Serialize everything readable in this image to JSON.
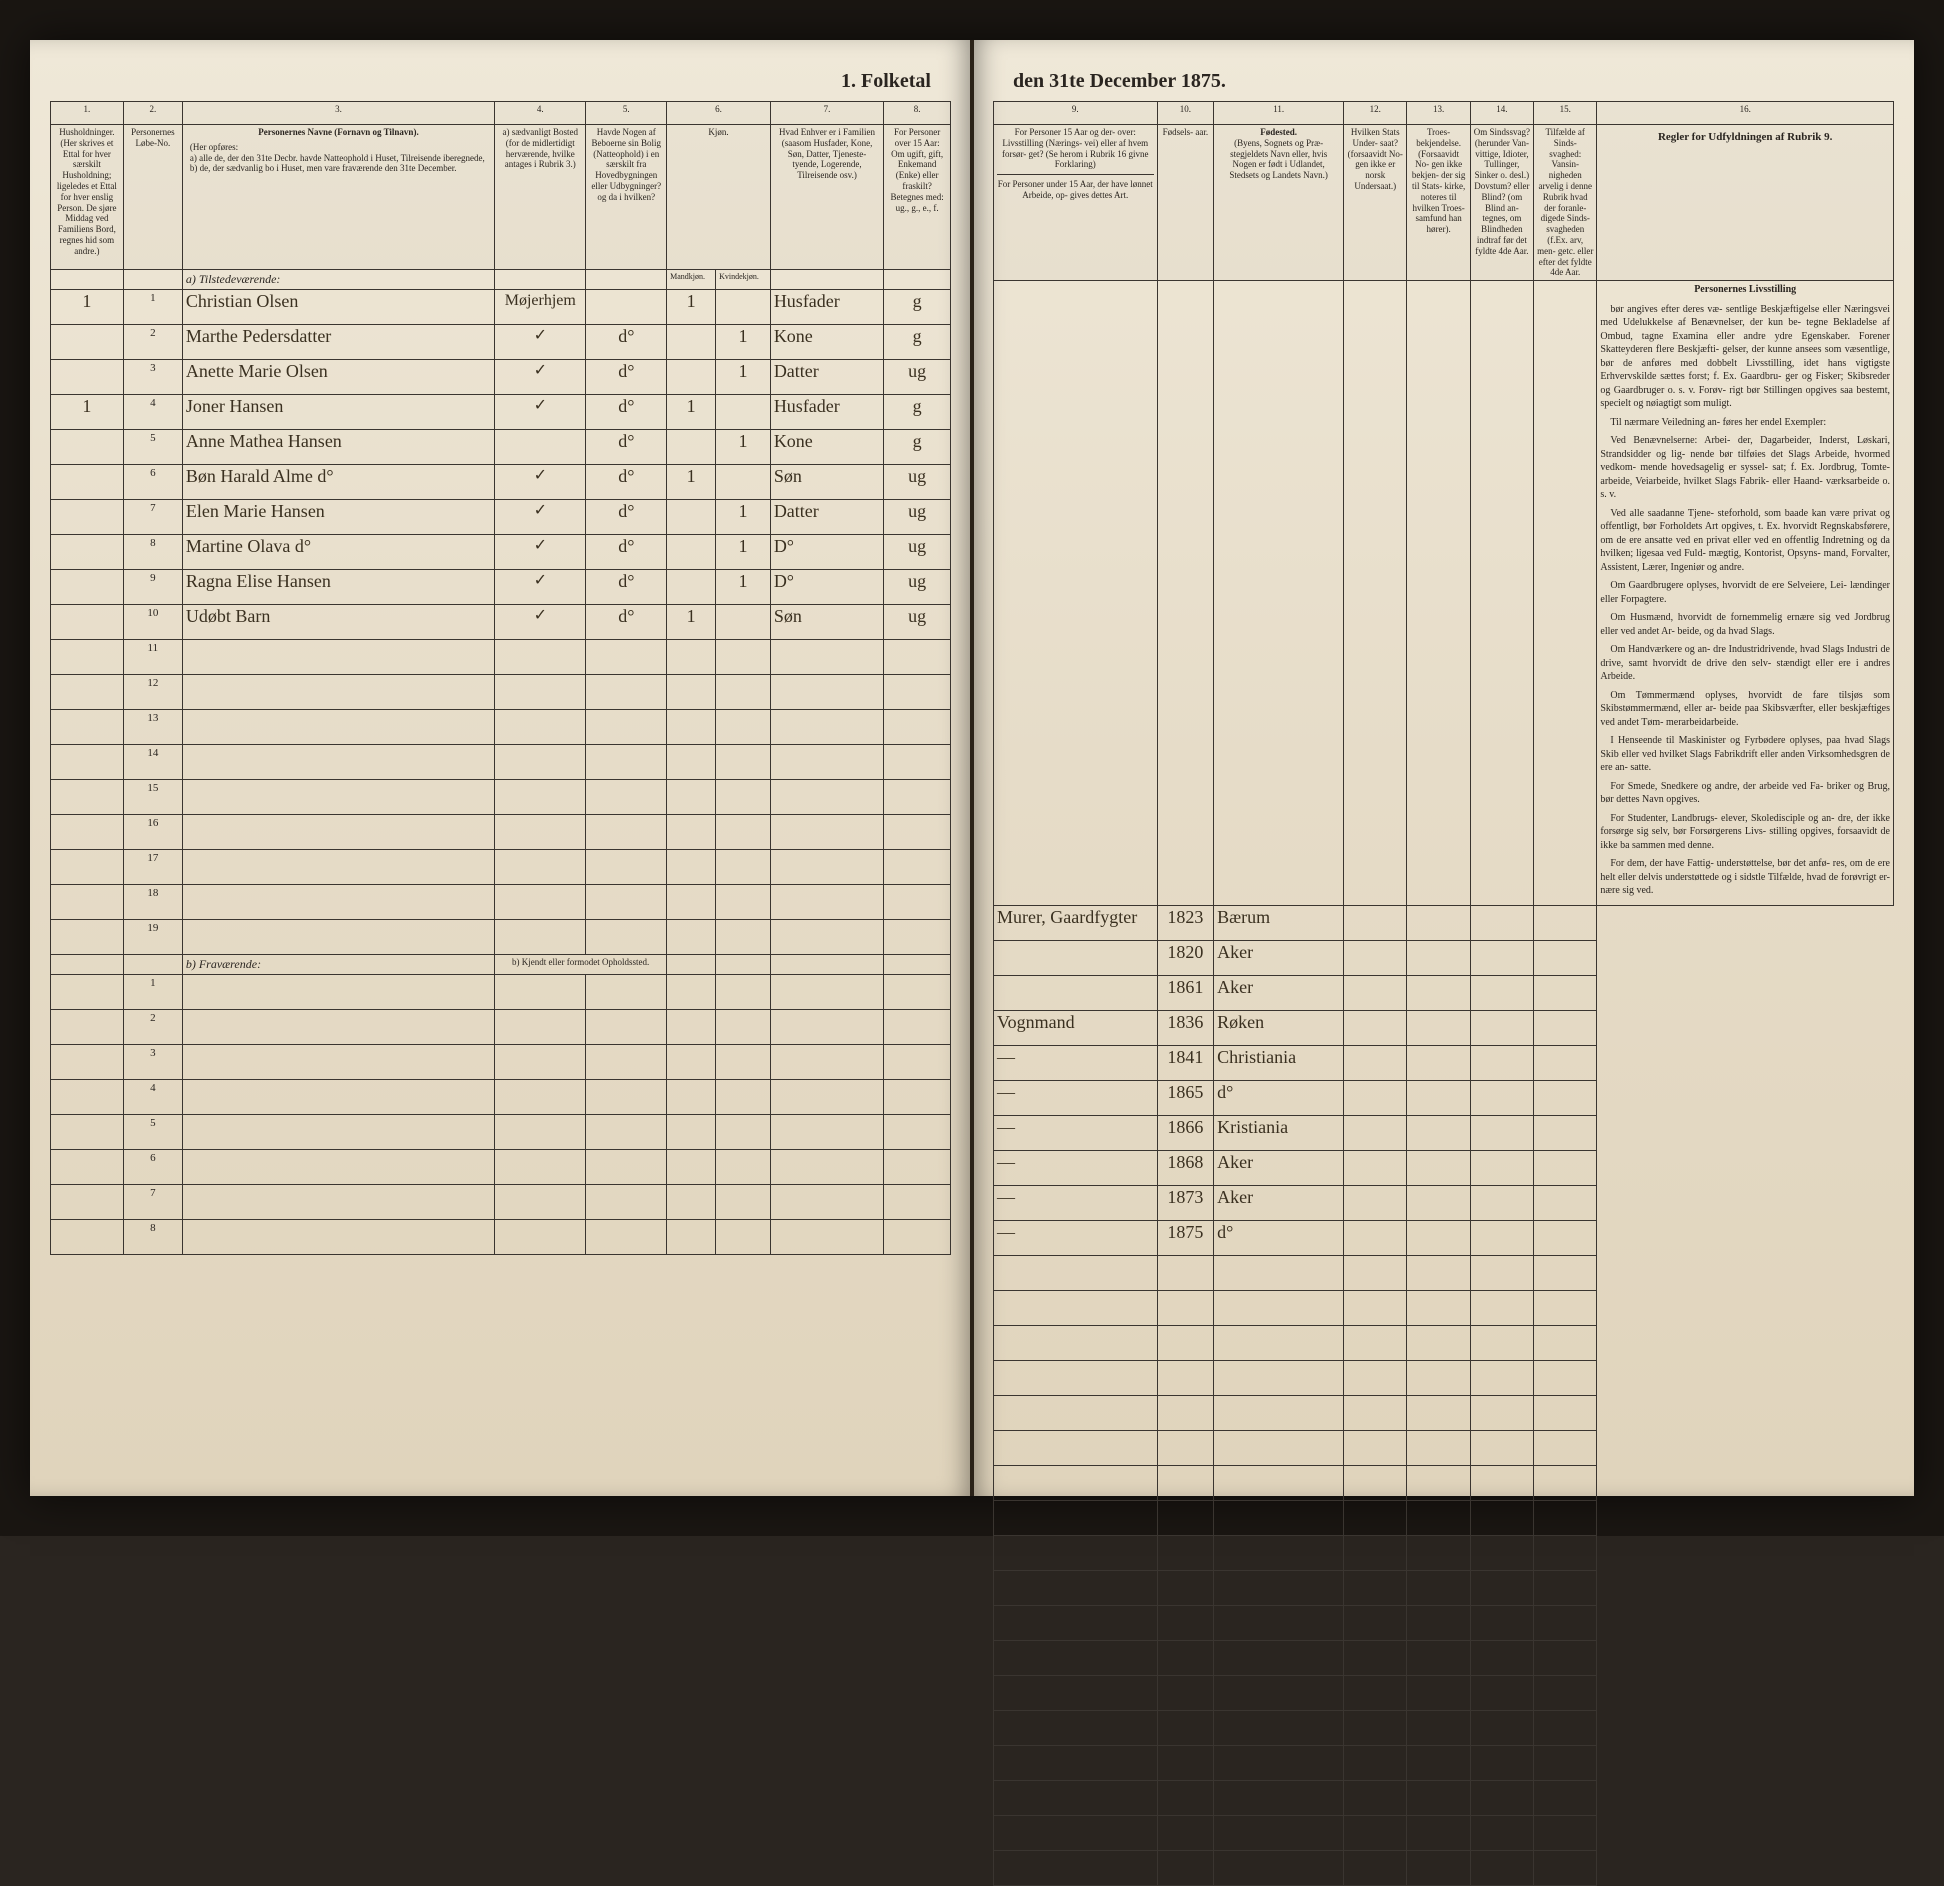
{
  "title_left": "1. Folketal",
  "title_right": "den 31te December 1875.",
  "column_numbers_left": [
    "1.",
    "2.",
    "3.",
    "4.",
    "5.",
    "6.",
    "7.",
    "8."
  ],
  "column_numbers_right": [
    "9.",
    "10.",
    "11.",
    "12.",
    "13.",
    "14.",
    "15.",
    "16."
  ],
  "headers_left": {
    "c1": "Husholdninger. (Her skrives et Ettal for hver særskilt Husholdning; ligeledes et Ettal for hver enslig Person. De sjøre Middag ved Familiens Bord, regnes hid som andre.)",
    "c2": "Personernes Løbe-No.",
    "c3_title": "Personernes Navne (Fornavn og Tilnavn).",
    "c3_body": "(Her opføres:\na) alle de, der den 31te Decbr. havde Natteophold i Huset, Tilreisende iberegnede,\nb) de, der sædvanlig bo i Huset, men vare fraværende den 31te December.",
    "c4": "a) sædvanligt Bosted (for de midlertidigt herværende, hvilke antages i Rubrik 3.)",
    "c5": "Havde Nogen af Beboerne sin Bolig (Natteophold) i en særskilt fra Hovedbygningen eller Udbygninger? og da i hvilken?",
    "c6": "Kjøn.",
    "c6a": "Mandkjøn.",
    "c6b": "Kvindekjøn.",
    "c7": "Hvad Enhver er i Familien (saasom Husfader, Kone, Søn, Datter, Tjeneste- tyende, Logerende, Tilreisende osv.)",
    "c8": "For Personer over 15 Aar: Om ugift, gift, Enkemand (Enke) eller fraskilt? Betegnes med: ug., g., e., f."
  },
  "headers_right": {
    "c9_top": "For Personer 15 Aar og der- over: Livsstilling (Nærings- vei) eller af hvem forsør- get? (Se herom i Rubrik 16 givne Forklaring)",
    "c9_bot": "For Personer under 15 Aar, der have lønnet Arbeide, op- gives dettes Art.",
    "c10": "Fødsels- aar.",
    "c11_title": "Fødested.",
    "c11_body": "(Byens, Sognets og Præ- stegjeldets Navn eller, hvis Nogen er født i Udlandet, Stedsets og Landets Navn.)",
    "c12": "Hvilken Stats Under- saat? (forsaavidt No- gen ikke er norsk Undersaat.)",
    "c13": "Troes- bekjendelse. (Forsaavidt No- gen ikke bekjen- der sig til Stats- kirke, noteres til hvilken Troes- samfund han hører).",
    "c14": "Om Sindssvag? (herunder Van- vittige, Idioter, Tullinger, Sinker o. desl.) Dovstum? eller Blind? (om Blind an- tegnes, om Blindheden indtraf før det fyldte 4de Aar.",
    "c15": "Tilfælde af Sinds- svaghed: Vansin- nigheden arvelig i denne Rubrik hvad der foranle- digede Sinds- svagheden (f.Ex. arv, men- getc. eller efter det fyldte 4de Aar.",
    "c16_title": "Regler for Udfyldningen af Rubrik 9."
  },
  "section_a": "a) Tilstedeværende:",
  "section_b": "b) Fraværende:",
  "section_b4": "b) Kjendt eller formodet Opholdssted.",
  "rows": [
    {
      "hh": "1",
      "n": "1",
      "name": "Christian Olsen",
      "c4": "Møjerhjem",
      "c5": "",
      "c6": "1",
      "c7": "Husfader",
      "c8": "g",
      "c9": "Murer, Gaardfygter",
      "c10": "1823",
      "c11": "Bærum"
    },
    {
      "hh": "",
      "n": "2",
      "name": "Marthe Pedersdatter",
      "c4": "✓",
      "c5": "d°",
      "c6": "1",
      "c7": "Kone",
      "c8": "g",
      "c9": "",
      "c10": "1820",
      "c11": "Aker"
    },
    {
      "hh": "",
      "n": "3",
      "name": "Anette Marie Olsen",
      "c4": "✓",
      "c5": "d°",
      "c6": "1",
      "c7": "Datter",
      "c8": "ug",
      "c9": "",
      "c10": "1861",
      "c11": "Aker"
    },
    {
      "hh": "1",
      "n": "4",
      "name": "Joner Hansen",
      "c4": "✓",
      "c5": "d°",
      "c6": "1",
      "c7": "Husfader",
      "c8": "g",
      "c9": "Vognmand",
      "c10": "1836",
      "c11": "Røken"
    },
    {
      "hh": "",
      "n": "5",
      "name": "Anne Mathea Hansen",
      "c4": "",
      "c5": "d°",
      "c6": "1",
      "c7": "Kone",
      "c8": "g",
      "c9": "—",
      "c10": "1841",
      "c11": "Christiania"
    },
    {
      "hh": "",
      "n": "6",
      "name": "Bøn Harald Alme d°",
      "c4": "✓",
      "c5": "d°",
      "c6": "1",
      "c7": "Søn",
      "c8": "ug",
      "c9": "—",
      "c10": "1865",
      "c11": "d°"
    },
    {
      "hh": "",
      "n": "7",
      "name": "Elen Marie Hansen",
      "c4": "✓",
      "c5": "d°",
      "c6": "1",
      "c7": "Datter",
      "c8": "ug",
      "c9": "—",
      "c10": "1866",
      "c11": "Kristiania"
    },
    {
      "hh": "",
      "n": "8",
      "name": "Martine Olava d°",
      "c4": "✓",
      "c5": "d°",
      "c6": "1",
      "c7": "D°",
      "c8": "ug",
      "c9": "—",
      "c10": "1868",
      "c11": "Aker"
    },
    {
      "hh": "",
      "n": "9",
      "name": "Ragna Elise Hansen",
      "c4": "✓",
      "c5": "d°",
      "c6": "1",
      "c7": "D°",
      "c8": "ug",
      "c9": "—",
      "c10": "1873",
      "c11": "Aker"
    },
    {
      "hh": "",
      "n": "10",
      "name": "Udøbt Barn",
      "c4": "✓",
      "c5": "d°",
      "c6": "1",
      "c7": "Søn",
      "c8": "ug",
      "c9": "—",
      "c10": "1875",
      "c11": "d°"
    }
  ],
  "empty_rows_a": [
    11,
    12,
    13,
    14,
    15,
    16,
    17,
    18,
    19
  ],
  "empty_rows_b": [
    1,
    2,
    3,
    4,
    5,
    6,
    7,
    8
  ],
  "instructions_title": "Personernes Livsstilling",
  "instructions": [
    "bør angives efter deres væ- sentlige Beskjæftigelse eller Næringsvei med Udelukkelse af Benævnelser, der kun be- tegne Bekladelse af Ombud, tagne Examina eller andre ydre Egenskaber. Forener Skatteyderen flere Beskjæfti- gelser, der kunne ansees som væsentlige, bør de anføres med dobbelt Livsstilling, idet hans vigtigste Erhvervskilde sættes forst; f. Ex. Gaardbru- ger og Fisker; Skibsreder og Gaardbruger o. s. v. Forøv- rigt bør Stillingen opgives saa bestemt, specielt og nøiagtigt som muligt.",
    "Til nærmare Veiledning an- føres her endel Exempler:",
    "Ved Benævnelserne: Arbei- der, Dagarbeider, Inderst, Løskari, Strandsidder og lig- nende bør tilføies det Slags Arbeide, hvormed vedkom- mende hovedsagelig er syssel- sat; f. Ex. Jordbrug, Tomte- arbeide, Veiarbeide, hvilket Slags Fabrik- eller Haand- værksarbeide o. s. v.",
    "Ved alle saadanne Tjene- steforhold, som baade kan være privat og offentligt, bør Forholdets Art opgives, t. Ex. hvorvidt Regnskabsførere, om de ere ansatte ved en privat eller ved en offentlig Indretning og da hvilken; ligesaa ved Fuld- mægtig, Kontorist, Opsyns- mand, Forvalter, Assistent, Lærer, Ingeniør og andre.",
    "Om Gaardbrugere oplyses, hvorvidt de ere Selveiere, Lei- lændinger eller Forpagtere.",
    "Om Husmænd, hvorvidt de fornemmelig ernære sig ved Jordbrug eller ved andet Ar- beide, og da hvad Slags.",
    "Om Handværkere og an- dre Industridrivende, hvad Slags Industri de drive, samt hvorvidt de drive den selv- stændigt eller ere i andres Arbeide.",
    "Om Tømmermænd oplyses, hvorvidt de fare tilsjøs som Skibstømmermænd, eller ar- beide paa Skibsværfter, eller beskjæftiges ved andet Tøm- merarbeidarbeide.",
    "I Henseende til Maskinister og Fyrbødere oplyses, paa hvad Slags Skib eller ved hvilket Slags Fabrikdrift eller anden Virksomhedsgren de ere an- satte.",
    "For Smede, Snedkere og andre, der arbeide ved Fa- briker og Brug, bør dettes Navn opgives.",
    "For Studenter, Landbrugs- elever, Skoledisciple og an- dre, der ikke forsørge sig selv, bør Forsørgerens Livs- stilling opgives, forsaavidt de ikke ba sammen med denne.",
    "For dem, der have Fattig- understøttelse, bør det anfø- res, om de ere helt eller delvis understøttede og i sidstle Tilfælde, hvad de forøvrigt er- nære sig ved."
  ],
  "colors": {
    "page_bg": "#e8e0d0",
    "ink": "#2a2520",
    "border": "#3a3530",
    "dark_bg": "#1a1612"
  }
}
